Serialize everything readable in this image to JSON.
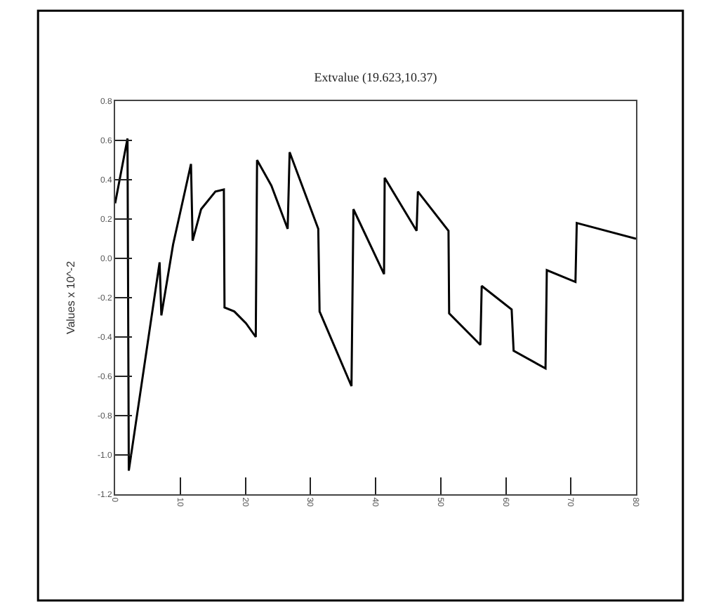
{
  "chart_data": {
    "type": "line",
    "title": "Extvalue (19.623,10.37)",
    "ylabel": "Values x 10^-2",
    "x": [
      0,
      1.9,
      2.1,
      6.83,
      7.1,
      8.9,
      11.65,
      11.9,
      13.2,
      15.4,
      16.7,
      16.8,
      18.3,
      20.1,
      21.6,
      21.8,
      24,
      26.5,
      26.8,
      31.2,
      31.4,
      36.3,
      36.6,
      41.3,
      41.4,
      46.3,
      46.5,
      51.2,
      51.3,
      56.1,
      56.3,
      60.9,
      61.2,
      66.1,
      66.3,
      70.7,
      70.9,
      80
    ],
    "values": [
      0.28,
      0.61,
      -1.08,
      -0.02,
      -0.29,
      0.07,
      0.48,
      0.09,
      0.25,
      0.34,
      0.35,
      -0.25,
      -0.27,
      -0.33,
      -0.4,
      0.5,
      0.37,
      0.15,
      0.54,
      0.15,
      -0.27,
      -0.65,
      0.25,
      -0.08,
      0.41,
      0.14,
      0.34,
      0.14,
      -0.28,
      -0.44,
      -0.14,
      -0.26,
      -0.47,
      -0.56,
      -0.06,
      -0.12,
      0.18,
      0.1
    ],
    "color": "#000000",
    "xlim": [
      0,
      80
    ],
    "xticks": [
      0,
      10,
      20,
      30,
      40,
      50,
      60,
      70,
      80
    ],
    "ylim": [
      -1.2,
      0.8
    ],
    "yticks": [
      {
        "value": -1.2,
        "label": "-1.2"
      },
      {
        "value": -1.0,
        "label": "-1.0"
      },
      {
        "value": -0.8,
        "label": "-0.8"
      },
      {
        "value": -0.6,
        "label": "-0.6"
      },
      {
        "value": -0.4,
        "label": "-0.4"
      },
      {
        "value": -0.2,
        "label": "-0.2"
      },
      {
        "value": 0,
        "label": "0.0"
      },
      {
        "value": 0.2,
        "label": "0.2"
      },
      {
        "value": 0.4,
        "label": "0.4"
      },
      {
        "value": 0.6,
        "label": "0.6"
      },
      {
        "value": 0.8,
        "label": "0.8"
      }
    ],
    "marker": "none",
    "line_style": "solid"
  }
}
